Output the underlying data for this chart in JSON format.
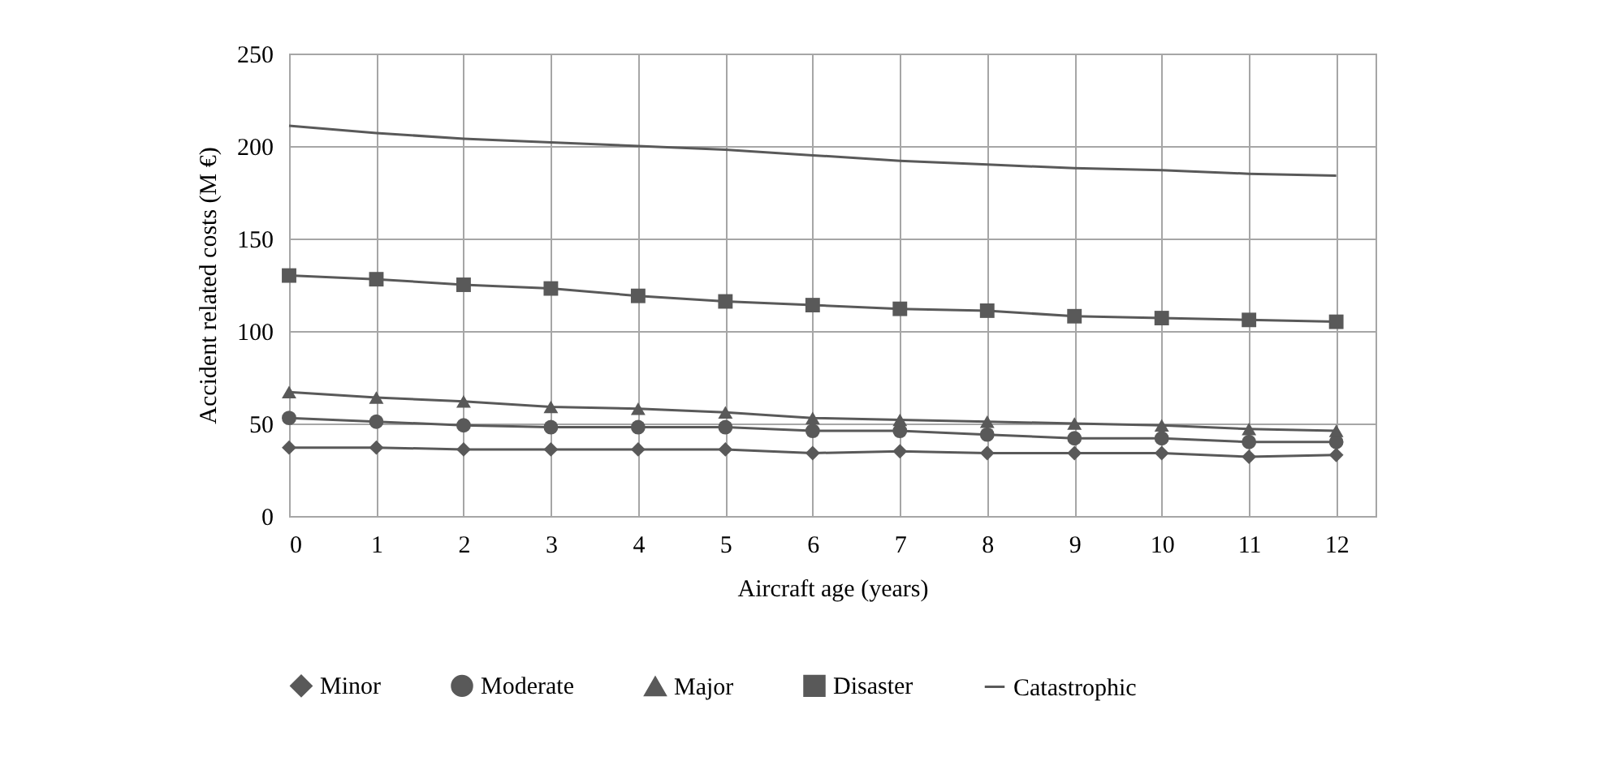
{
  "chart_data": {
    "type": "line",
    "xlabel": "Aircraft age (years)",
    "ylabel": "Accident related costs (M €)",
    "x": [
      0,
      1,
      2,
      3,
      4,
      5,
      6,
      7,
      8,
      9,
      10,
      11,
      12
    ],
    "xlim": [
      0,
      12.45
    ],
    "xticks": [
      0,
      1,
      2,
      3,
      4,
      5,
      6,
      7,
      8,
      9,
      10,
      11,
      12
    ],
    "ylim": [
      0,
      250
    ],
    "yticks": [
      0,
      50,
      100,
      150,
      200,
      250
    ],
    "grid": true,
    "legend": "bottom",
    "line_style": "solid",
    "series": [
      {
        "name": "Minor",
        "color": "#595959",
        "marker": "diamond",
        "values": [
          37,
          37,
          36,
          36,
          36,
          36,
          34,
          35,
          34,
          34,
          34,
          32,
          33
        ]
      },
      {
        "name": "Moderate",
        "color": "#595959",
        "marker": "circle",
        "values": [
          53,
          51,
          49,
          48,
          48,
          48,
          46,
          46,
          44,
          42,
          42,
          40,
          40
        ]
      },
      {
        "name": "Major",
        "color": "#595959",
        "marker": "triangle",
        "values": [
          67,
          64,
          62,
          59,
          58,
          56,
          53,
          52,
          51,
          50,
          49,
          47,
          46
        ]
      },
      {
        "name": "Disaster",
        "color": "#595959",
        "marker": "square",
        "values": [
          130,
          128,
          125,
          123,
          119,
          116,
          114,
          112,
          111,
          108,
          107,
          106,
          105
        ]
      },
      {
        "name": "Catastrophic",
        "color": "#595959",
        "marker": "none",
        "values": [
          211,
          207,
          204,
          202,
          200,
          198,
          195,
          192,
          190,
          188,
          187,
          185,
          184
        ]
      }
    ]
  }
}
